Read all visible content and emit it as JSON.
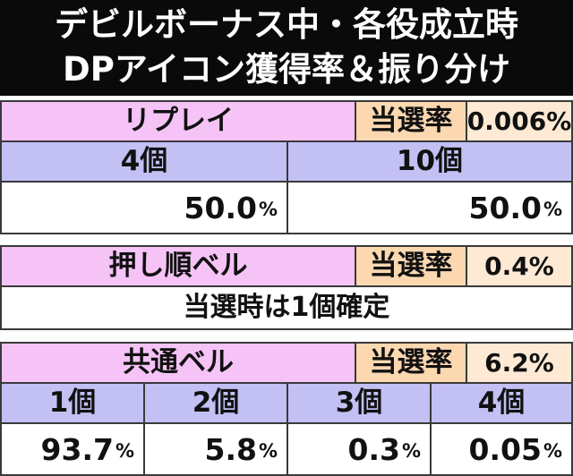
{
  "header": {
    "line1": "デビルボーナス中・各役成立時",
    "line2": "DPアイコン獲得率＆振り分け"
  },
  "sections": [
    {
      "name": "リプレイ",
      "rate_label": "当選率",
      "rate_value": "0.006%",
      "headers": [
        "4個",
        "10個"
      ],
      "values": [
        {
          "num": "50.0",
          "unit": "%"
        },
        {
          "num": "50.0",
          "unit": "%"
        }
      ]
    },
    {
      "name": "押し順ベル",
      "rate_label": "当選率",
      "rate_value": "0.4%",
      "note": "当選時は1個確定"
    },
    {
      "name": "共通ベル",
      "rate_label": "当選率",
      "rate_value": "6.2%",
      "headers": [
        "1個",
        "2個",
        "3個",
        "4個"
      ],
      "values": [
        {
          "num": "93.7",
          "unit": "%"
        },
        {
          "num": "5.8",
          "unit": "%"
        },
        {
          "num": "0.3",
          "unit": "%"
        },
        {
          "num": "0.05",
          "unit": "%"
        }
      ]
    }
  ]
}
